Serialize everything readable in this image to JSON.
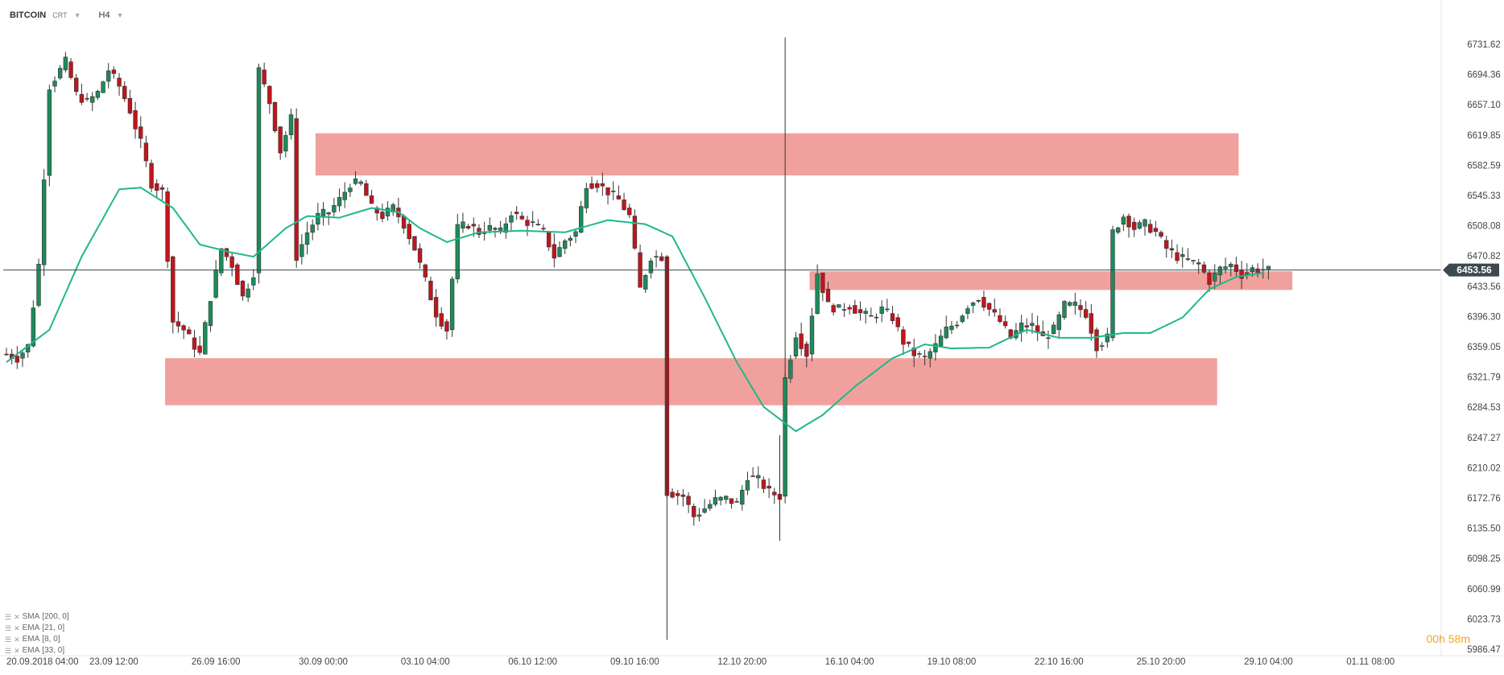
{
  "toolbar": {
    "symbol": "BITCOIN",
    "chart_mode": "CRT",
    "timeframe": "H4",
    "caret_icon": "chevron-down-icon"
  },
  "indicators": [
    {
      "label": "SMA",
      "params": "[200,  0]"
    },
    {
      "label": "EMA",
      "params": "[21,  0]"
    },
    {
      "label": "EMA",
      "params": "[8,  0]"
    },
    {
      "label": "EMA",
      "params": "[33,  0]"
    }
  ],
  "timer": {
    "hours": "00h",
    "minutes": "58m"
  },
  "colors": {
    "up": "#1e8a5a",
    "down": "#c0161c",
    "ema_line": "#1fb88a",
    "zone": "#f09c98",
    "price_line": "#3b4a52",
    "badge_bg": "#3b4a52",
    "timer": "#f5a623"
  },
  "chart_data": {
    "type": "candlestick",
    "title": "",
    "current_price": "6453.56",
    "y_range": [
      5986.47,
      6750.0
    ],
    "y_ticks": [
      "6731.62",
      "6694.36",
      "6657.10",
      "6619.85",
      "6582.59",
      "6545.33",
      "6508.08",
      "6470.82",
      "6433.56",
      "6396.30",
      "6359.05",
      "6321.79",
      "6284.53",
      "6247.27",
      "6210.02",
      "6172.76",
      "6135.50",
      "6098.25",
      "6060.99",
      "6023.73",
      "5986.47"
    ],
    "x_ticks": [
      "20.09.2018  04:00",
      "23.09  12:00",
      "26.09  16:00",
      "30.09  00:00",
      "03.10  04:00",
      "06.10  12:00",
      "09.10  16:00",
      "12.10  20:00",
      "16.10  04:00",
      "19.10  08:00",
      "22.10  16:00",
      "25.10  20:00",
      "29.10  04:00",
      "01.11  08:00"
    ],
    "x_tick_candle_index": [
      0,
      20,
      39,
      59,
      78,
      98,
      117,
      137,
      157,
      176,
      196,
      215,
      235,
      254
    ],
    "candle_count": 236,
    "zones": [
      {
        "from_index": 58,
        "to_index": 229,
        "low": 6570,
        "high": 6622
      },
      {
        "from_index": 150,
        "to_index": 239,
        "low": 6429,
        "high": 6452
      },
      {
        "from_index": 30,
        "to_index": 225,
        "low": 6287,
        "high": 6345
      }
    ],
    "ema_keypoints": [
      [
        0,
        6340
      ],
      [
        8,
        6380
      ],
      [
        14,
        6470
      ],
      [
        21,
        6553
      ],
      [
        25,
        6555
      ],
      [
        31,
        6530
      ],
      [
        36,
        6485
      ],
      [
        42,
        6475
      ],
      [
        46,
        6470
      ],
      [
        52,
        6505
      ],
      [
        56,
        6520
      ],
      [
        62,
        6518
      ],
      [
        68,
        6530
      ],
      [
        73,
        6525
      ],
      [
        77,
        6505
      ],
      [
        82,
        6488
      ],
      [
        88,
        6500
      ],
      [
        96,
        6502
      ],
      [
        104,
        6500
      ],
      [
        112,
        6515
      ],
      [
        119,
        6510
      ],
      [
        124,
        6495
      ],
      [
        130,
        6420
      ],
      [
        136,
        6340
      ],
      [
        141,
        6285
      ],
      [
        147,
        6255
      ],
      [
        152,
        6275
      ],
      [
        158,
        6310
      ],
      [
        165,
        6345
      ],
      [
        171,
        6362
      ],
      [
        176,
        6357
      ],
      [
        183,
        6358
      ],
      [
        190,
        6380
      ],
      [
        196,
        6370
      ],
      [
        202,
        6370
      ],
      [
        208,
        6376
      ],
      [
        213,
        6376
      ],
      [
        219,
        6395
      ],
      [
        224,
        6430
      ],
      [
        229,
        6445
      ],
      [
        234,
        6450
      ]
    ],
    "price_keypoints": [
      [
        0,
        6350
      ],
      [
        2,
        6345
      ],
      [
        4,
        6360
      ],
      [
        6,
        6460
      ],
      [
        8,
        6680
      ],
      [
        11,
        6710
      ],
      [
        13,
        6670
      ],
      [
        15,
        6660
      ],
      [
        17,
        6672
      ],
      [
        19,
        6700
      ],
      [
        21,
        6680
      ],
      [
        23,
        6650
      ],
      [
        25,
        6610
      ],
      [
        27,
        6560
      ],
      [
        29,
        6550
      ],
      [
        31,
        6390
      ],
      [
        33,
        6380
      ],
      [
        36,
        6350
      ],
      [
        38,
        6420
      ],
      [
        40,
        6480
      ],
      [
        42,
        6460
      ],
      [
        44,
        6420
      ],
      [
        46,
        6450
      ],
      [
        47,
        6700
      ],
      [
        49,
        6660
      ],
      [
        51,
        6600
      ],
      [
        53,
        6640
      ],
      [
        54,
        6470
      ],
      [
        56,
        6500
      ],
      [
        58,
        6520
      ],
      [
        60,
        6525
      ],
      [
        62,
        6540
      ],
      [
        64,
        6560
      ],
      [
        66,
        6560
      ],
      [
        68,
        6530
      ],
      [
        70,
        6520
      ],
      [
        72,
        6530
      ],
      [
        74,
        6510
      ],
      [
        76,
        6480
      ],
      [
        78,
        6440
      ],
      [
        80,
        6400
      ],
      [
        82,
        6380
      ],
      [
        84,
        6505
      ],
      [
        86,
        6510
      ],
      [
        88,
        6500
      ],
      [
        90,
        6505
      ],
      [
        92,
        6500
      ],
      [
        94,
        6525
      ],
      [
        96,
        6515
      ],
      [
        98,
        6510
      ],
      [
        100,
        6500
      ],
      [
        102,
        6470
      ],
      [
        104,
        6490
      ],
      [
        106,
        6500
      ],
      [
        108,
        6560
      ],
      [
        110,
        6560
      ],
      [
        112,
        6550
      ],
      [
        114,
        6540
      ],
      [
        116,
        6520
      ],
      [
        118,
        6430
      ],
      [
        120,
        6470
      ],
      [
        122,
        6470
      ],
      [
        123,
        6180
      ],
      [
        126,
        6175
      ],
      [
        128,
        6150
      ],
      [
        130,
        6160
      ],
      [
        132,
        6170
      ],
      [
        134,
        6172
      ],
      [
        136,
        6165
      ],
      [
        138,
        6200
      ],
      [
        140,
        6195
      ],
      [
        142,
        6180
      ],
      [
        144,
        6175
      ],
      [
        145,
        6320
      ],
      [
        147,
        6375
      ],
      [
        149,
        6350
      ],
      [
        151,
        6450
      ],
      [
        153,
        6410
      ],
      [
        155,
        6405
      ],
      [
        157,
        6410
      ],
      [
        159,
        6400
      ],
      [
        161,
        6395
      ],
      [
        163,
        6405
      ],
      [
        165,
        6395
      ],
      [
        167,
        6365
      ],
      [
        169,
        6350
      ],
      [
        171,
        6345
      ],
      [
        173,
        6360
      ],
      [
        175,
        6380
      ],
      [
        177,
        6390
      ],
      [
        179,
        6410
      ],
      [
        181,
        6420
      ],
      [
        183,
        6405
      ],
      [
        185,
        6390
      ],
      [
        187,
        6370
      ],
      [
        189,
        6385
      ],
      [
        191,
        6385
      ],
      [
        193,
        6370
      ],
      [
        195,
        6380
      ],
      [
        197,
        6410
      ],
      [
        199,
        6410
      ],
      [
        201,
        6400
      ],
      [
        203,
        6360
      ],
      [
        205,
        6370
      ],
      [
        206,
        6500
      ],
      [
        208,
        6520
      ],
      [
        210,
        6505
      ],
      [
        212,
        6510
      ],
      [
        214,
        6500
      ],
      [
        216,
        6480
      ],
      [
        218,
        6470
      ],
      [
        220,
        6465
      ],
      [
        222,
        6460
      ],
      [
        224,
        6440
      ],
      [
        226,
        6455
      ],
      [
        228,
        6460
      ],
      [
        230,
        6448
      ],
      [
        232,
        6455
      ],
      [
        235,
        6453
      ]
    ]
  }
}
